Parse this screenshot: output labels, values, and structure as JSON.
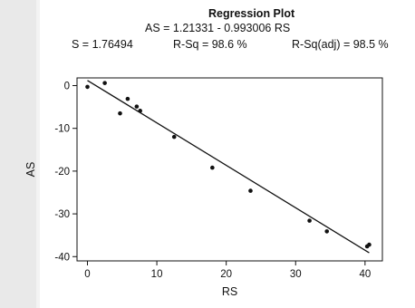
{
  "chart_data": {
    "type": "scatter",
    "title": "Regression Plot",
    "equation": "AS = 1.21331 - 0.993006 RS",
    "stats": {
      "s": "S = 1.76494",
      "r_sq": "R-Sq = 98.6 %",
      "r_sq_adj": "R-Sq(adj) = 98.5 %"
    },
    "xlabel": "RS",
    "ylabel": "AS",
    "xlim": [
      -1.5,
      42.5
    ],
    "ylim": [
      -41,
      1.8
    ],
    "x_ticks": [
      0,
      10,
      20,
      30,
      40
    ],
    "x_tick_labels": [
      "0",
      "10",
      "20",
      "30",
      "40"
    ],
    "y_ticks": [
      0,
      -10,
      -20,
      -30,
      -40
    ],
    "y_tick_labels": [
      "0",
      "-10",
      "-20",
      "-30",
      "-40"
    ],
    "points": [
      {
        "x": 0,
        "y": -0.3
      },
      {
        "x": 2.5,
        "y": 0.6
      },
      {
        "x": 4.7,
        "y": -6.5
      },
      {
        "x": 5.8,
        "y": -3.1
      },
      {
        "x": 7.1,
        "y": -4.9
      },
      {
        "x": 7.6,
        "y": -5.9
      },
      {
        "x": 12.5,
        "y": -12.0
      },
      {
        "x": 18.0,
        "y": -19.2
      },
      {
        "x": 23.5,
        "y": -24.6
      },
      {
        "x": 32.0,
        "y": -31.6
      },
      {
        "x": 34.5,
        "y": -34.1
      },
      {
        "x": 40.3,
        "y": -37.6
      },
      {
        "x": 40.6,
        "y": -37.2
      }
    ],
    "fit": {
      "intercept": 1.21331,
      "slope": -0.993006,
      "x_range": [
        0,
        40.6
      ]
    },
    "grid": false,
    "colors": {
      "marks": "#111111",
      "background": "#ffffff",
      "side_panel": "#e9e9e9"
    }
  }
}
